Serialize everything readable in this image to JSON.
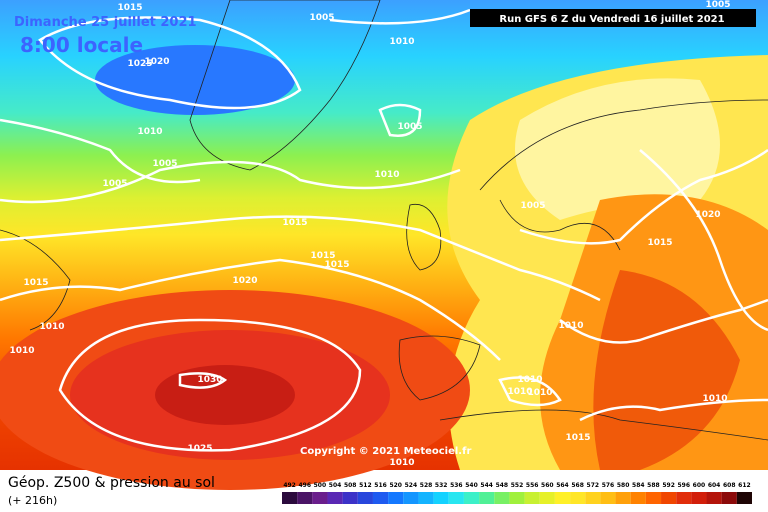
{
  "header": {
    "date": "Dimanche 25 juillet 2021",
    "time": "8:00 locale",
    "run": "Run GFS 6 Z du Vendredi 16 juillet 2021"
  },
  "copyright": "Copyright © 2021 Meteociel.fr",
  "footer": {
    "title": "Géop. Z500 & pression au sol",
    "lead": "(+ 216h)"
  },
  "isobar_labels": [
    1015,
    1005,
    1010,
    1025,
    1020,
    1005,
    1010,
    1005,
    1005,
    1010,
    1005,
    1020,
    1015,
    1015,
    1015,
    1015,
    1015,
    1020,
    1010,
    1010,
    1010,
    1030,
    1010,
    1010,
    1010,
    1010,
    1015,
    1025,
    1010,
    1005
  ],
  "legend": {
    "values": [
      492,
      496,
      500,
      504,
      508,
      512,
      516,
      520,
      524,
      528,
      532,
      536,
      540,
      544,
      548,
      552,
      556,
      560,
      564,
      568,
      572,
      576,
      580,
      584,
      588,
      592,
      596,
      600,
      604,
      608,
      612
    ],
    "colors": [
      "#2b0a3d",
      "#4a1466",
      "#6a1e8c",
      "#5a28b4",
      "#3c32c8",
      "#2846dc",
      "#1e5af0",
      "#1478ff",
      "#1496ff",
      "#14b4ff",
      "#14d2ff",
      "#28e6f0",
      "#3cf0c8",
      "#50f096",
      "#78f064",
      "#a0f03c",
      "#c8f032",
      "#e6f028",
      "#fff028",
      "#ffe628",
      "#ffd21e",
      "#ffbe14",
      "#ffa00a",
      "#ff8200",
      "#ff6400",
      "#f04600",
      "#e12d0a",
      "#d21e0a",
      "#b4140a",
      "#8c0a0a",
      "#1e0505"
    ]
  }
}
